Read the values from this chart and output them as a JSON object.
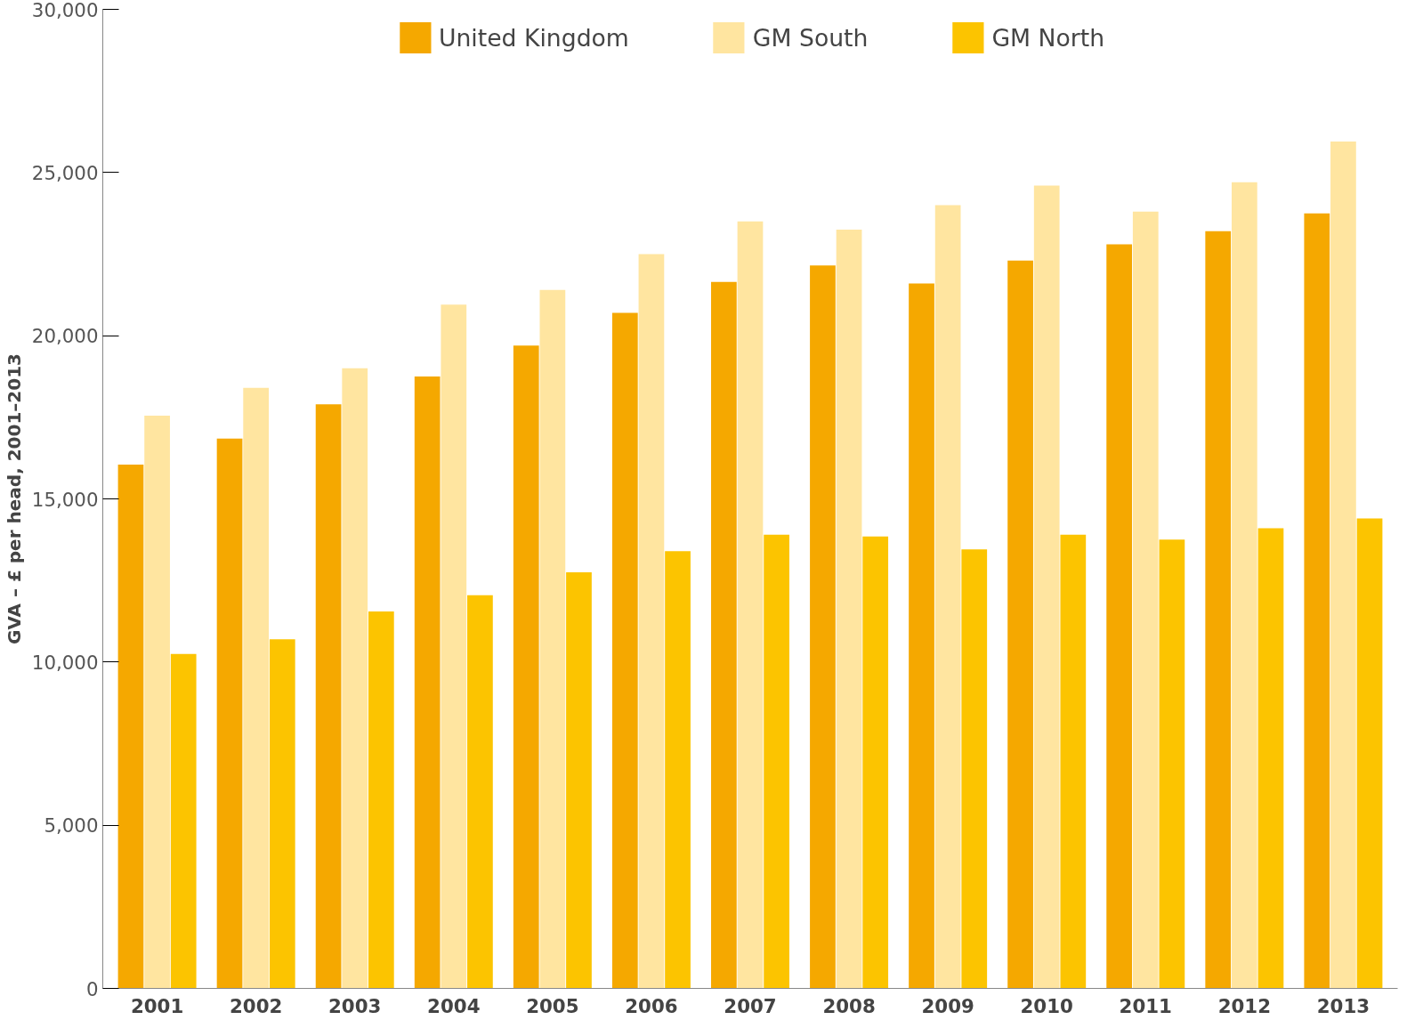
{
  "chart_data": {
    "type": "bar",
    "ylabel": "GVA – £ per head, 2001–2013",
    "categories": [
      "2001",
      "2002",
      "2003",
      "2004",
      "2005",
      "2006",
      "2007",
      "2008",
      "2009",
      "2010",
      "2011",
      "2012",
      "2013"
    ],
    "series": [
      {
        "name": "United Kingdom",
        "color": "#f5a800",
        "values": [
          16050,
          16850,
          17900,
          18750,
          19700,
          20700,
          21650,
          22150,
          21600,
          22300,
          22800,
          23200,
          23750
        ]
      },
      {
        "name": "GM South",
        "color": "#ffe5a0",
        "values": [
          17550,
          18400,
          19000,
          20950,
          21400,
          22500,
          23500,
          23250,
          24000,
          24600,
          23800,
          24700,
          25950
        ]
      },
      {
        "name": "GM North",
        "color": "#fcc400",
        "values": [
          10250,
          10700,
          11550,
          12050,
          12750,
          13400,
          13900,
          13850,
          13450,
          13900,
          13750,
          14100,
          14400
        ]
      }
    ],
    "ylim": [
      0,
      30000
    ],
    "yticks": [
      0,
      {
        "value": 5000,
        "label": "5,000"
      },
      {
        "value": 10000,
        "label": "10,000"
      },
      {
        "value": 15000,
        "label": "15,000"
      },
      {
        "value": 20000,
        "label": "20,000"
      },
      {
        "value": 25000,
        "label": "25,000"
      },
      {
        "value": 30000,
        "label": "30,000"
      }
    ],
    "grid": false,
    "legend": "top"
  }
}
